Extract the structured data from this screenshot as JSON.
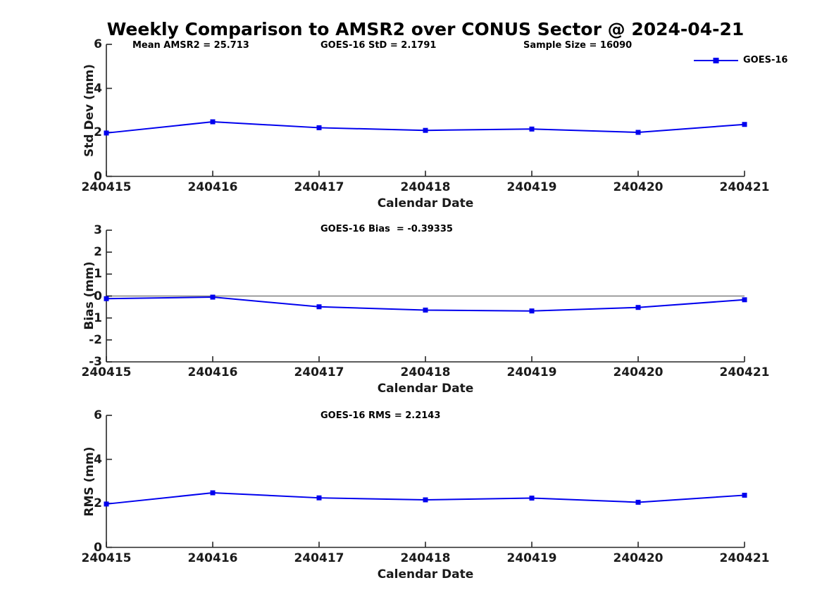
{
  "title": "Weekly Comparison to AMSR2 over CONUS Sector @ 2024-04-21",
  "legend": {
    "label": "GOES-16",
    "position": "top-right"
  },
  "colors": {
    "series": "#0000EE",
    "zero_line": "#808080",
    "axis": "#262626",
    "text": "#000000"
  },
  "chart_data": [
    {
      "type": "line",
      "name": "std-dev",
      "annotations": [
        "Mean AMSR2 = 25.713",
        "GOES-16 StD = 2.1791",
        "Sample Size = 16090"
      ],
      "ylabel": "Std Dev (mm)",
      "xlabel": "Calendar Date",
      "categories": [
        "240415",
        "240416",
        "240417",
        "240418",
        "240419",
        "240420",
        "240421"
      ],
      "series": [
        {
          "name": "GOES-16",
          "values": [
            1.97,
            2.48,
            2.21,
            2.09,
            2.15,
            2.0,
            2.36
          ]
        }
      ],
      "ylim": [
        0,
        6
      ],
      "yticks": [
        0,
        2,
        4,
        6
      ],
      "grid": false,
      "zero_line": false,
      "marker": "square"
    },
    {
      "type": "line",
      "name": "bias",
      "annotations": [
        "GOES-16 Bias  = -0.39335"
      ],
      "ylabel": "Bias (mm)",
      "xlabel": "Calendar Date",
      "categories": [
        "240415",
        "240416",
        "240417",
        "240418",
        "240419",
        "240420",
        "240421"
      ],
      "series": [
        {
          "name": "GOES-16",
          "values": [
            -0.12,
            -0.05,
            -0.49,
            -0.64,
            -0.68,
            -0.52,
            -0.17
          ]
        }
      ],
      "ylim": [
        -3,
        3
      ],
      "yticks": [
        -3,
        -2,
        -1,
        0,
        1,
        2,
        3
      ],
      "grid": false,
      "zero_line": true,
      "marker": "square"
    },
    {
      "type": "line",
      "name": "rms",
      "annotations": [
        "GOES-16 RMS = 2.2143"
      ],
      "ylabel": "RMS (mm)",
      "xlabel": "Calendar Date",
      "categories": [
        "240415",
        "240416",
        "240417",
        "240418",
        "240419",
        "240420",
        "240421"
      ],
      "series": [
        {
          "name": "GOES-16",
          "values": [
            1.97,
            2.48,
            2.25,
            2.16,
            2.24,
            2.05,
            2.37
          ]
        }
      ],
      "ylim": [
        0,
        6
      ],
      "yticks": [
        0,
        2,
        4,
        6
      ],
      "grid": false,
      "zero_line": false,
      "marker": "square"
    }
  ]
}
